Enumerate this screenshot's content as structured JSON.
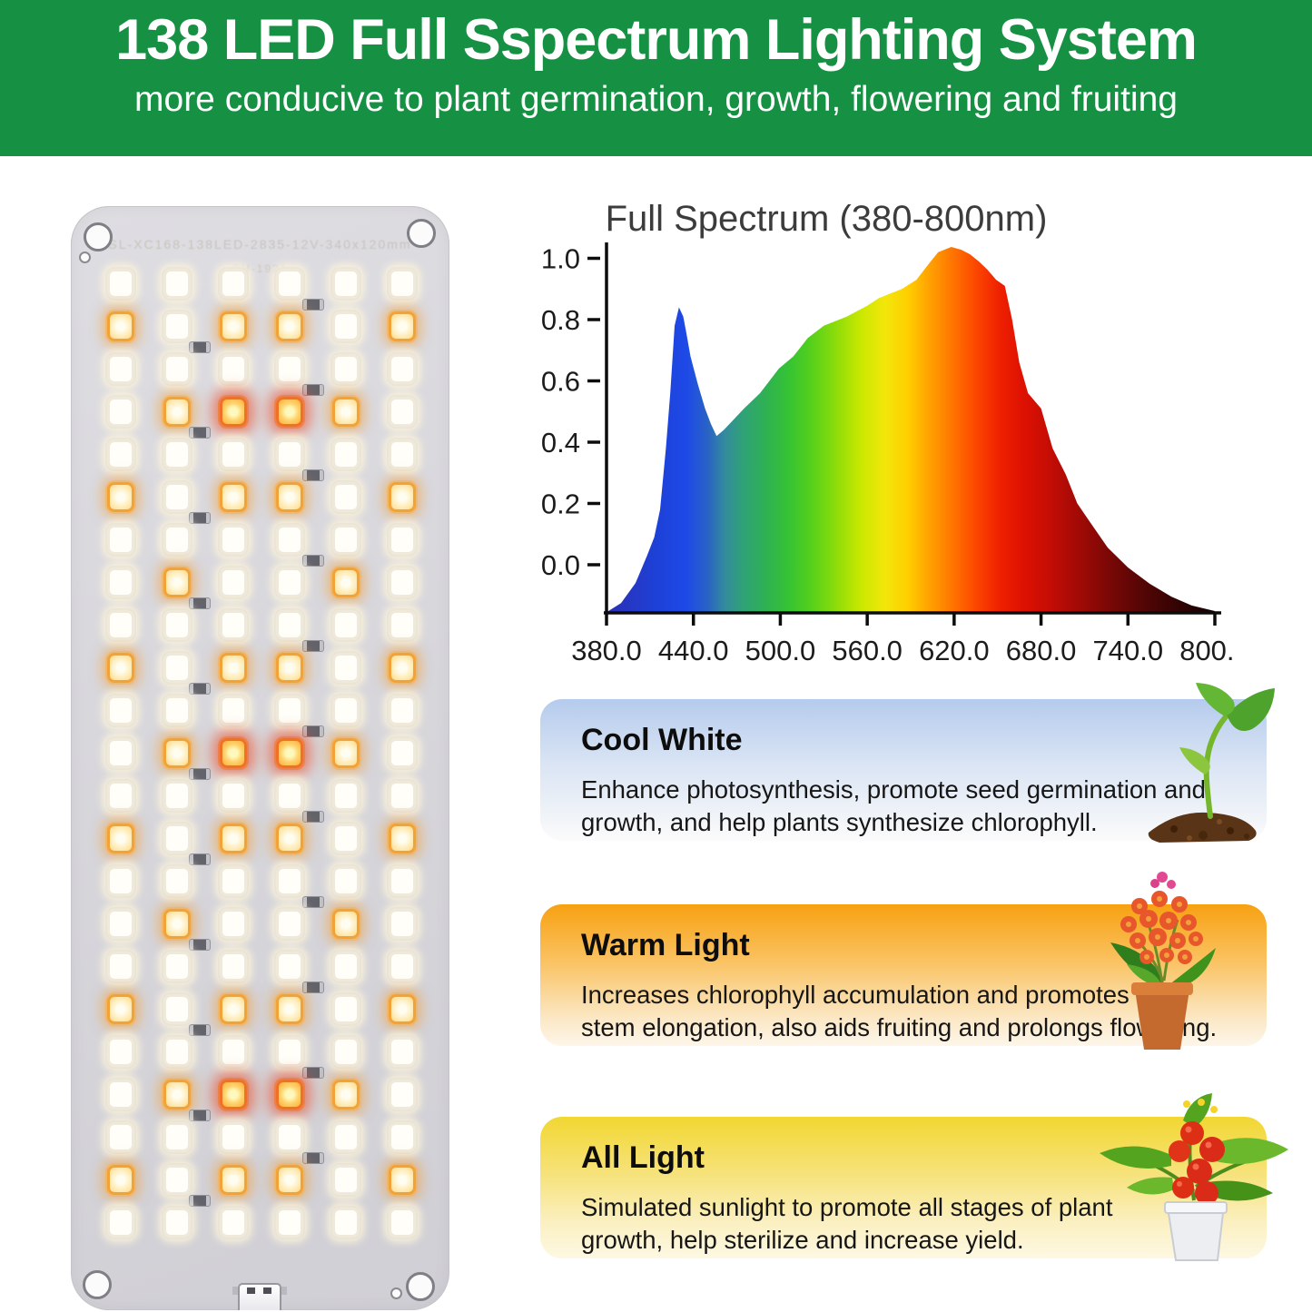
{
  "header": {
    "title": "138 LED Full Sspectrum Lighting System",
    "subtitle": "more conducive to plant germination, growth, flowering and fruiting",
    "bg_color": "#169042",
    "text_color": "#ffffff"
  },
  "panel": {
    "board_print_line1": "SL-XC168-138LED-2835-12V-340x120mm",
    "board_print_line2": "CH-1921",
    "columns": 6,
    "led_count": 138,
    "row_sequence": [
      "W",
      "C",
      "W",
      "D",
      "W",
      "C",
      "W",
      "B",
      "W",
      "C",
      "W",
      "D",
      "W",
      "C",
      "W",
      "B",
      "W",
      "C",
      "W",
      "D",
      "W",
      "C",
      "W"
    ],
    "row_patterns": {
      "W": [
        "white",
        "white",
        "white",
        "white",
        "white",
        "white"
      ],
      "C": [
        "orange",
        "white",
        "orange",
        "orange",
        "white",
        "orange"
      ],
      "D": [
        "white",
        "orange",
        "red",
        "red",
        "orange",
        "white"
      ],
      "B": [
        "white",
        "orange",
        "white",
        "white",
        "orange",
        "white"
      ]
    }
  },
  "chart_data": {
    "type": "area",
    "title": "Full Spectrum (380-800nm)",
    "xlabel": "",
    "ylabel": "",
    "xlim": [
      380,
      803
    ],
    "ylim": [
      -0.16,
      1.08
    ],
    "grid": false,
    "legend": "none",
    "baseline_value": -0.157,
    "x_ticks": [
      380,
      440,
      500,
      560,
      620,
      680,
      740,
      800
    ],
    "x_tick_labels": [
      "380.0",
      "440.0",
      "500.0",
      "560.0",
      "620.0",
      "680.0",
      "740.0",
      "800.0"
    ],
    "y_ticks": [
      0.0,
      0.2,
      0.4,
      0.6,
      0.8,
      1.0
    ],
    "y_tick_labels": [
      "0.0",
      "0.2",
      "0.4",
      "0.6",
      "0.8",
      "1.0"
    ],
    "series": [
      {
        "name": "relative spectral intensity",
        "points": [
          [
            380,
            -0.155
          ],
          [
            390,
            -0.125
          ],
          [
            400,
            -0.06
          ],
          [
            408,
            0.03
          ],
          [
            413,
            0.09
          ],
          [
            417,
            0.18
          ],
          [
            421,
            0.38
          ],
          [
            424,
            0.56
          ],
          [
            427,
            0.78
          ],
          [
            430,
            0.84
          ],
          [
            433,
            0.81
          ],
          [
            435,
            0.76
          ],
          [
            438,
            0.68
          ],
          [
            443,
            0.59
          ],
          [
            448,
            0.51
          ],
          [
            452,
            0.46
          ],
          [
            456,
            0.42
          ],
          [
            461,
            0.44
          ],
          [
            467,
            0.47
          ],
          [
            475,
            0.51
          ],
          [
            486,
            0.56
          ],
          [
            499,
            0.64
          ],
          [
            509,
            0.68
          ],
          [
            519,
            0.74
          ],
          [
            530,
            0.78
          ],
          [
            546,
            0.81
          ],
          [
            560,
            0.845
          ],
          [
            568,
            0.87
          ],
          [
            576,
            0.885
          ],
          [
            584,
            0.9
          ],
          [
            594,
            0.93
          ],
          [
            603,
            0.985
          ],
          [
            609,
            1.02
          ],
          [
            618,
            1.037
          ],
          [
            625,
            1.028
          ],
          [
            631,
            1.013
          ],
          [
            637,
            0.99
          ],
          [
            643,
            0.963
          ],
          [
            649,
            0.93
          ],
          [
            655,
            0.91
          ],
          [
            660,
            0.8
          ],
          [
            665,
            0.66
          ],
          [
            671,
            0.56
          ],
          [
            680,
            0.51
          ],
          [
            688,
            0.38
          ],
          [
            697,
            0.295
          ],
          [
            705,
            0.2
          ],
          [
            713,
            0.145
          ],
          [
            726,
            0.056
          ],
          [
            740,
            -0.009
          ],
          [
            755,
            -0.062
          ],
          [
            770,
            -0.104
          ],
          [
            784,
            -0.133
          ],
          [
            800,
            -0.151
          ]
        ]
      }
    ],
    "fill_gradient": [
      [
        380,
        "#2d2fb3"
      ],
      [
        415,
        "#1d41d8"
      ],
      [
        435,
        "#1e49e8"
      ],
      [
        450,
        "#2a63c4"
      ],
      [
        462,
        "#338c9c"
      ],
      [
        475,
        "#2fa375"
      ],
      [
        490,
        "#2fb153"
      ],
      [
        505,
        "#35c235"
      ],
      [
        520,
        "#52cf1d"
      ],
      [
        538,
        "#8bdc0a"
      ],
      [
        555,
        "#c8e800"
      ],
      [
        572,
        "#f2e60a"
      ],
      [
        588,
        "#ffcf00"
      ],
      [
        600,
        "#ffaa00"
      ],
      [
        612,
        "#ff8800"
      ],
      [
        624,
        "#ff6600"
      ],
      [
        638,
        "#fa3f00"
      ],
      [
        652,
        "#ee1f00"
      ],
      [
        668,
        "#dd1102"
      ],
      [
        685,
        "#c60d05"
      ],
      [
        705,
        "#a30a06"
      ],
      [
        730,
        "#740806"
      ],
      [
        755,
        "#4d0505"
      ],
      [
        780,
        "#2b0303"
      ],
      [
        800,
        "#140101"
      ]
    ],
    "axis_color": "#0c0c0c",
    "label_color": "#1c1c1c",
    "title_color": "#3c3c3c"
  },
  "cards": [
    {
      "id": "cool-white",
      "title": "Cool White",
      "lines": [
        "Enhance photosynthesis, promote seed germination and",
        "growth, and help plants synthesize chlorophyll."
      ],
      "bg_top": "#b5cbed",
      "bg_bottom": "#fbfbfa",
      "image": "seedling-in-soil"
    },
    {
      "id": "warm-light",
      "title": "Warm Light",
      "lines": [
        "Increases chlorophyll accumulation and promotes",
        "stem elongation, also aids fruiting and prolongs flowering."
      ],
      "bg_top": "#f7a112",
      "bg_bottom": "#fdf6ea",
      "image": "orchid-in-pot"
    },
    {
      "id": "all-light",
      "title": "All Light",
      "lines": [
        "Simulated sunlight to promote all stages of plant",
        "growth, help sterilize and increase yield."
      ],
      "bg_top": "#f2d732",
      "bg_bottom": "#fdf8e3",
      "image": "tomato-plant-in-pot"
    }
  ]
}
